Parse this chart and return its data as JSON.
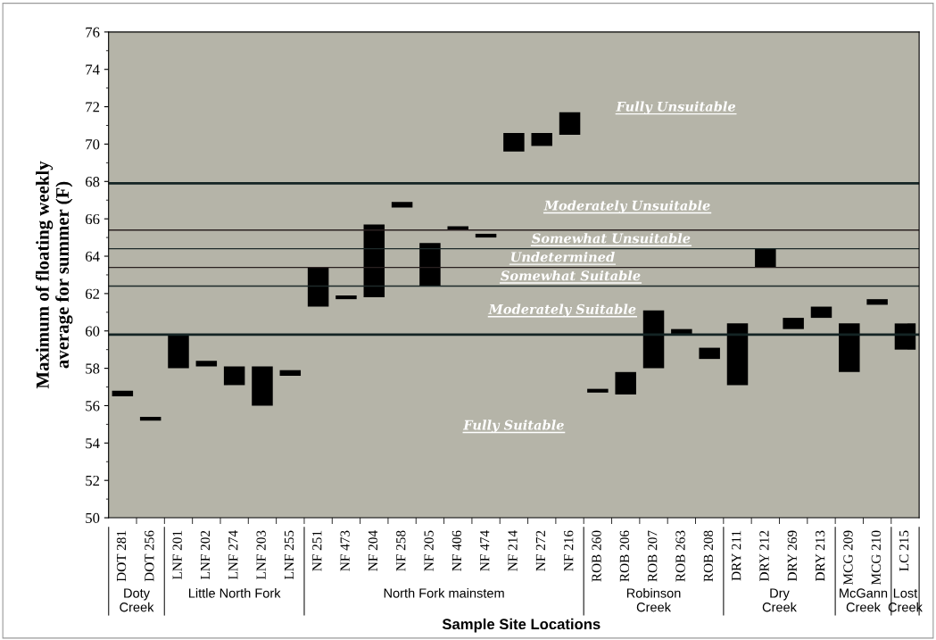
{
  "chart_data": {
    "type": "bar",
    "xlabel": "Sample Site Locations",
    "ylabel": "Maximum of floating weekly\naverage for summer (F)",
    "categories": [
      "DOT 281",
      "DOT 256",
      "LNF 201",
      "LNF 202",
      "LNF 274",
      "LNF 203",
      "LNF 255",
      "NF 251",
      "NF 473",
      "NF 204",
      "NF 258",
      "NF 205",
      "NF 406",
      "NF 474",
      "NF 214",
      "NF 272",
      "NF 216",
      "ROB 260",
      "ROB 206",
      "ROB 207",
      "ROB 263",
      "ROB 208",
      "DRY 211",
      "DRY 212",
      "DRY 269",
      "DRY 213",
      "MCG 209",
      "MCG 210",
      "LC 215"
    ],
    "base": [
      56.5,
      55.2,
      58.0,
      58.1,
      57.1,
      56.0,
      57.6,
      61.3,
      61.7,
      61.8,
      66.6,
      62.4,
      65.4,
      65.0,
      69.6,
      69.9,
      70.5,
      56.7,
      56.6,
      58.0,
      59.8,
      58.5,
      57.1,
      63.4,
      60.1,
      60.7,
      57.8,
      61.4,
      59.0
    ],
    "values": [
      0.3,
      0.2,
      1.8,
      0.3,
      1.0,
      2.1,
      0.3,
      2.1,
      0.2,
      3.9,
      0.3,
      2.3,
      0.2,
      0.2,
      1.0,
      0.7,
      1.2,
      0.2,
      1.2,
      3.1,
      0.3,
      0.6,
      3.3,
      1.0,
      0.6,
      0.6,
      2.6,
      0.3,
      1.4
    ],
    "color": "#000000",
    "ylim": [
      50,
      76
    ],
    "yticks": [
      50,
      52,
      54,
      56,
      58,
      60,
      62,
      64,
      66,
      68,
      70,
      72,
      74,
      76
    ],
    "grid": false,
    "legend": false,
    "ref_lines": [
      {
        "axis": "y",
        "value": 67.9,
        "color": "#142424"
      },
      {
        "axis": "y",
        "value": 65.4,
        "color": "#2a2020"
      },
      {
        "axis": "y",
        "value": 64.4,
        "color": "#1e2a2a"
      },
      {
        "axis": "y",
        "value": 63.4,
        "color": "#2a2020"
      },
      {
        "axis": "y",
        "value": 62.4,
        "color": "#1e2a2a"
      },
      {
        "axis": "y",
        "value": 59.8,
        "color": "#142424"
      }
    ],
    "annotations": [
      "Fully Unsuitable",
      "Moderately Unsuitable",
      "Somewhat Unsuitable",
      "Undetermined",
      "Somewhat Suitable",
      "Moderately Suitable",
      "Fully Suitable",
      "Doty\nCreek",
      "Little North Fork",
      "North Fork mainstem",
      "Robinson\nCreek",
      "Dry\nCreek",
      "McGann\nCreek",
      "Lost\nCreek"
    ]
  }
}
